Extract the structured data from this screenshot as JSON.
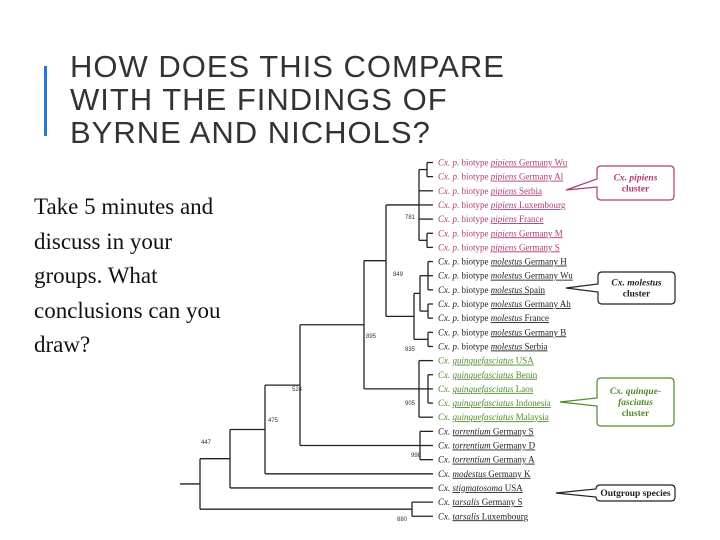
{
  "title": {
    "line1": "HOW DOES THIS COMPARE",
    "line2": "WITH THE FINDINGS OF",
    "line3": "BYRNE AND NICHOLS?"
  },
  "body": {
    "lines": [
      "Take 5 minutes and",
      "discuss in your",
      "groups.  What",
      "conclusions can you",
      "draw?"
    ]
  },
  "colors": {
    "accent": "#2a78c7",
    "pipiens": "#b03a74",
    "molestus": "#222222",
    "quinque": "#4e8a2e",
    "outgroup": "#222222"
  },
  "tree": {
    "taxa": [
      {
        "genus": "Cx.",
        "sp": "p.",
        "mid": "biotype",
        "form": "pipiens",
        "loc": "Germany Wu",
        "color": "pipiens"
      },
      {
        "genus": "Cx.",
        "sp": "p.",
        "mid": "biotype",
        "form": "pipiens",
        "loc": "Germany Al",
        "color": "pipiens"
      },
      {
        "genus": "Cx.",
        "sp": "p.",
        "mid": "biotype",
        "form": "pipiens",
        "loc": "Serbia",
        "color": "pipiens"
      },
      {
        "genus": "Cx.",
        "sp": "p.",
        "mid": "biotype",
        "form": "pipiens",
        "loc": "Luxembourg",
        "color": "pipiens"
      },
      {
        "genus": "Cx.",
        "sp": "p.",
        "mid": "biotype",
        "form": "pipiens",
        "loc": "France",
        "color": "pipiens"
      },
      {
        "genus": "Cx.",
        "sp": "p.",
        "mid": "biotype",
        "form": "pipiens",
        "loc": "Germany M",
        "color": "pipiens"
      },
      {
        "genus": "Cx.",
        "sp": "p.",
        "mid": "biotype",
        "form": "pipiens",
        "loc": "Germany S",
        "color": "pipiens"
      },
      {
        "genus": "Cx.",
        "sp": "p.",
        "mid": "biotype",
        "form": "molestus",
        "loc": "Germany H",
        "color": "molestus"
      },
      {
        "genus": "Cx.",
        "sp": "p.",
        "mid": "biotype",
        "form": "molestus",
        "loc": "Germany Wu",
        "color": "molestus"
      },
      {
        "genus": "Cx.",
        "sp": "p.",
        "mid": "biotype",
        "form": "molestus",
        "loc": "Spain",
        "color": "molestus"
      },
      {
        "genus": "Cx.",
        "sp": "p.",
        "mid": "biotype",
        "form": "molestus",
        "loc": "Germany Ah",
        "color": "molestus"
      },
      {
        "genus": "Cx.",
        "sp": "p.",
        "mid": "biotype",
        "form": "molestus",
        "loc": "France",
        "color": "molestus"
      },
      {
        "genus": "Cx.",
        "sp": "p.",
        "mid": "biotype",
        "form": "molestus",
        "loc": "Germany B",
        "color": "molestus"
      },
      {
        "genus": "Cx.",
        "sp": "p.",
        "mid": "biotype",
        "form": "molestus",
        "loc": "Serbia",
        "color": "molestus"
      },
      {
        "genus": "Cx.",
        "sp": "",
        "mid": "",
        "form": "quinquefasciatus",
        "loc": "USA",
        "color": "quinque"
      },
      {
        "genus": "Cx.",
        "sp": "",
        "mid": "",
        "form": "quinquefasciatus",
        "loc": "Benin",
        "color": "quinque"
      },
      {
        "genus": "Cx.",
        "sp": "",
        "mid": "",
        "form": "quinquefasciatus",
        "loc": "Laos",
        "color": "quinque"
      },
      {
        "genus": "Cx.",
        "sp": "",
        "mid": "",
        "form": "quinquefasciatus",
        "loc": "Indonesia",
        "color": "quinque"
      },
      {
        "genus": "Cx.",
        "sp": "",
        "mid": "",
        "form": "quinquefasciatus",
        "loc": "Malaysia",
        "color": "quinque"
      },
      {
        "genus": "Cx.",
        "sp": "",
        "mid": "",
        "form": "torrentium",
        "loc": "Germany S",
        "color": "outgroup"
      },
      {
        "genus": "Cx.",
        "sp": "",
        "mid": "",
        "form": "torrentium",
        "loc": "Germany D",
        "color": "outgroup"
      },
      {
        "genus": "Cx.",
        "sp": "",
        "mid": "",
        "form": "torrentium",
        "loc": "Germany A",
        "color": "outgroup"
      },
      {
        "genus": "Cx.",
        "sp": "",
        "mid": "",
        "form": "modestus",
        "loc": "Germany K",
        "color": "outgroup"
      },
      {
        "genus": "Cx.",
        "sp": "",
        "mid": "",
        "form": "stigmatosoma",
        "loc": "USA",
        "color": "outgroup"
      },
      {
        "genus": "Cx.",
        "sp": "",
        "mid": "",
        "form": "tarsalis",
        "loc": "Germany S",
        "color": "outgroup"
      },
      {
        "genus": "Cx.",
        "sp": "",
        "mid": "",
        "form": "tarsalis",
        "loc": "Luxembourg",
        "color": "outgroup"
      }
    ],
    "bootstraps": [
      "781",
      "849",
      "895",
      "835",
      "524",
      "905",
      "475",
      "447",
      "998",
      "880"
    ],
    "callouts": [
      {
        "lines": [
          "Cx. pipiens",
          "cluster"
        ],
        "color": "pipiens"
      },
      {
        "lines": [
          "Cx. molestus",
          "cluster"
        ],
        "color": "molestus"
      },
      {
        "lines": [
          "Cx. quinque-",
          "fasciatus",
          "cluster"
        ],
        "color": "quinque"
      },
      {
        "lines": [
          "Outgroup species"
        ],
        "color": "outgroup"
      }
    ]
  }
}
